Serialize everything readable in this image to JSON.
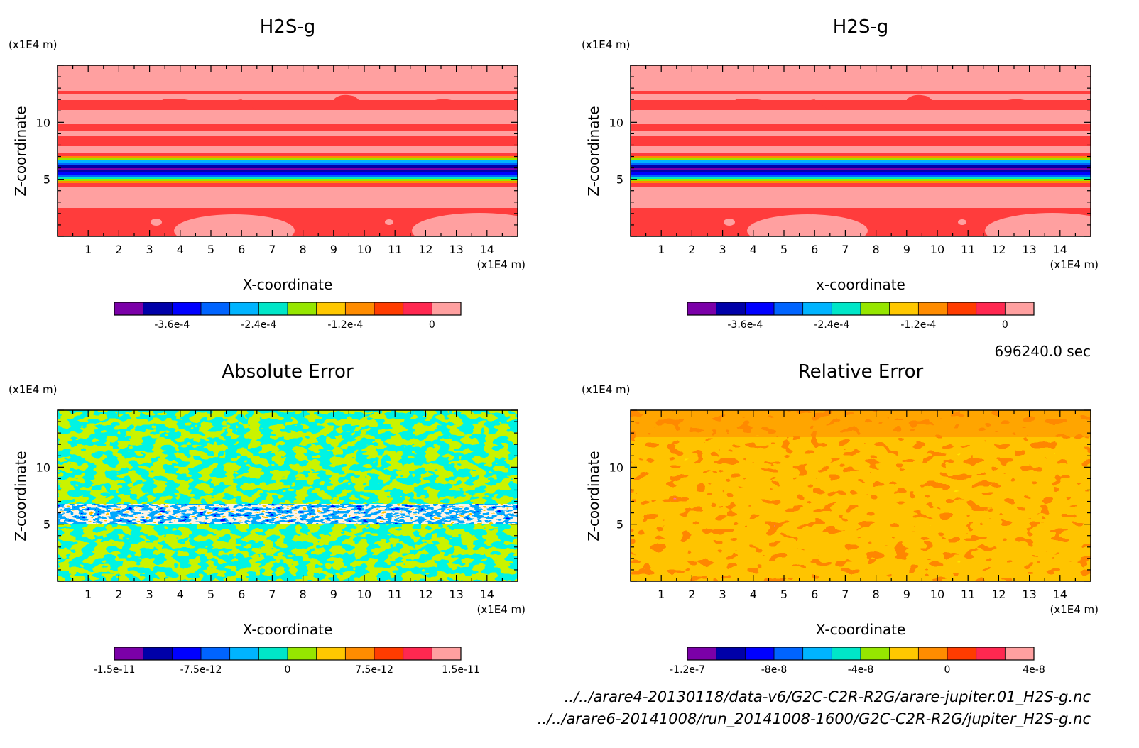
{
  "time_label": "696240.0 sec",
  "footer_lines": [
    "../../arare4-20130118/data-v6/G2C-C2R-R2G/arare-jupiter.01_H2S-g.nc",
    "../../arare6-20141008/run_20141008-1600/G2C-C2R-R2G/jupiter_H2S-g.nc"
  ],
  "chart_data": [
    {
      "type": "heatmap",
      "title": "H2S-g",
      "xlabel": "X-coordinate",
      "ylabel": "Z-coordinate",
      "x_unit": "(x1E4 m)",
      "z_unit": "(x1E4 m)",
      "xlim": [
        0,
        15
      ],
      "ylim": [
        0,
        15
      ],
      "x_ticks": [
        1,
        2,
        3,
        4,
        5,
        6,
        7,
        8,
        9,
        10,
        11,
        12,
        13,
        14
      ],
      "y_ticks": [
        5,
        10
      ],
      "colorbar": {
        "colors": [
          "#7b00a8",
          "#0000a8",
          "#0000ff",
          "#0064ff",
          "#00b4ff",
          "#00e6c8",
          "#96e600",
          "#ffc800",
          "#ff8c00",
          "#ff3c00",
          "#ff2850",
          "#ffa0a0"
        ],
        "tick_labels": [
          "-3.6e-4",
          "-2.4e-4",
          "-1.2e-4",
          "0"
        ]
      }
    },
    {
      "type": "heatmap",
      "title": "H2S-g",
      "xlabel": "x-coordinate",
      "ylabel": "Z-coordinate",
      "x_unit": "(x1E4 m)",
      "z_unit": "(x1E4 m)",
      "xlim": [
        0,
        15
      ],
      "ylim": [
        0,
        15
      ],
      "x_ticks": [
        1,
        2,
        3,
        4,
        5,
        6,
        7,
        8,
        9,
        10,
        11,
        12,
        13,
        14
      ],
      "y_ticks": [
        5,
        10
      ],
      "colorbar": {
        "colors": [
          "#7b00a8",
          "#0000a8",
          "#0000ff",
          "#0064ff",
          "#00b4ff",
          "#00e6c8",
          "#96e600",
          "#ffc800",
          "#ff8c00",
          "#ff3c00",
          "#ff2850",
          "#ffa0a0"
        ],
        "tick_labels": [
          "-3.6e-4",
          "-2.4e-4",
          "-1.2e-4",
          "0"
        ]
      }
    },
    {
      "type": "heatmap",
      "title": "Absolute Error",
      "xlabel": "X-coordinate",
      "ylabel": "Z-coordinate",
      "x_unit": "(x1E4 m)",
      "z_unit": "(x1E4 m)",
      "xlim": [
        0,
        15
      ],
      "ylim": [
        0,
        15
      ],
      "x_ticks": [
        1,
        2,
        3,
        4,
        5,
        6,
        7,
        8,
        9,
        10,
        11,
        12,
        13,
        14
      ],
      "y_ticks": [
        5,
        10
      ],
      "colorbar": {
        "colors": [
          "#7b00a8",
          "#0000a8",
          "#0000ff",
          "#0064ff",
          "#00b4ff",
          "#00e6c8",
          "#96e600",
          "#ffc800",
          "#ff8c00",
          "#ff3c00",
          "#ff2850",
          "#ffa0a0"
        ],
        "tick_labels": [
          "-1.5e-11",
          "-7.5e-12",
          "0",
          "7.5e-12",
          "1.5e-11"
        ]
      }
    },
    {
      "type": "heatmap",
      "title": "Relative Error",
      "xlabel": "X-coordinate",
      "ylabel": "Z-coordinate",
      "x_unit": "(x1E4 m)",
      "z_unit": "(x1E4 m)",
      "xlim": [
        0,
        15
      ],
      "ylim": [
        0,
        15
      ],
      "x_ticks": [
        1,
        2,
        3,
        4,
        5,
        6,
        7,
        8,
        9,
        10,
        11,
        12,
        13,
        14
      ],
      "y_ticks": [
        5,
        10
      ],
      "colorbar": {
        "colors": [
          "#7b00a8",
          "#0000a8",
          "#0000ff",
          "#0064ff",
          "#00b4ff",
          "#00e6c8",
          "#96e600",
          "#ffc800",
          "#ff8c00",
          "#ff3c00",
          "#ff2850",
          "#ffa0a0"
        ],
        "tick_labels": [
          "-1.2e-7",
          "-8e-8",
          "-4e-8",
          "0",
          "4e-8"
        ]
      }
    }
  ]
}
